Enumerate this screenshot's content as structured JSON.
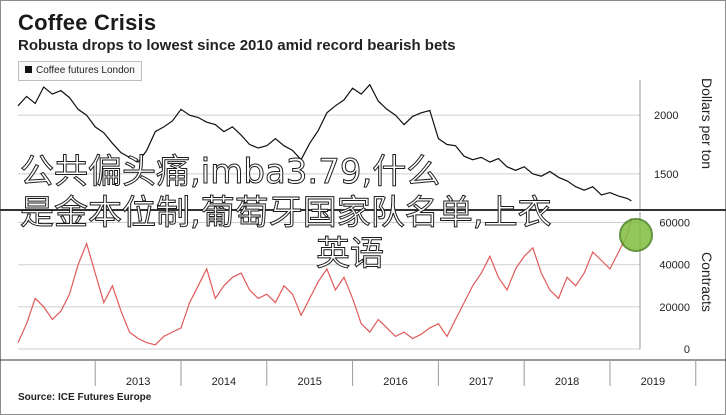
{
  "header": {
    "title": "Coffee Crisis",
    "subtitle": "Robusta drops to lowest since 2010 amid record bearish bets",
    "legend_label": "Coffee futures London"
  },
  "source": "Source: ICE Futures Europe",
  "overlay": {
    "line1": "公共偏头痛,imba3.79,什么",
    "line2": "是金本位制,葡萄牙国家队名单,上衣",
    "line3": "英语"
  },
  "colors": {
    "price_line": "#111111",
    "contracts_line": "#e05a5a",
    "logo": "#7fbf3f"
  },
  "chart_data": [
    {
      "type": "line",
      "title": "Robusta drops to lowest since 2010 amid record bearish bets",
      "ylabel": "Dollars per ton",
      "ylim": [
        1200,
        2300
      ],
      "yticks": [
        1500,
        2000
      ],
      "xticks": [
        "2013",
        "2014",
        "2015",
        "2016",
        "2017",
        "2018",
        "2019"
      ],
      "series": [
        {
          "name": "Coffee futures London",
          "x": [
            2012.1,
            2012.2,
            2012.3,
            2012.4,
            2012.5,
            2012.6,
            2012.7,
            2012.8,
            2012.9,
            2013.0,
            2013.1,
            2013.2,
            2013.3,
            2013.4,
            2013.5,
            2013.6,
            2013.7,
            2013.8,
            2013.9,
            2014.0,
            2014.1,
            2014.2,
            2014.3,
            2014.4,
            2014.5,
            2014.6,
            2014.7,
            2014.8,
            2014.9,
            2015.0,
            2015.1,
            2015.2,
            2015.3,
            2015.4,
            2015.5,
            2015.6,
            2015.7,
            2015.8,
            2015.9,
            2016.0,
            2016.1,
            2016.2,
            2016.3,
            2016.4,
            2016.5,
            2016.6,
            2016.7,
            2016.8,
            2016.9,
            2017.0,
            2017.1,
            2017.2,
            2017.3,
            2017.4,
            2017.5,
            2017.6,
            2017.7,
            2017.8,
            2017.9,
            2018.0,
            2018.1,
            2018.2,
            2018.3,
            2018.4,
            2018.5,
            2018.6,
            2018.7,
            2018.8,
            2018.9,
            2019.0,
            2019.1,
            2019.2,
            2019.25
          ],
          "values": [
            2080,
            2160,
            2100,
            2240,
            2180,
            2210,
            2150,
            2050,
            2000,
            1900,
            1850,
            1760,
            1680,
            1640,
            1600,
            1700,
            1860,
            1900,
            1950,
            2050,
            2000,
            1980,
            1940,
            1920,
            1860,
            1900,
            1830,
            1750,
            1720,
            1740,
            1800,
            1740,
            1700,
            1620,
            1760,
            1870,
            2020,
            2080,
            2130,
            2230,
            2180,
            2260,
            2120,
            2050,
            2000,
            1920,
            1990,
            2020,
            2040,
            1800,
            1750,
            1740,
            1650,
            1620,
            1640,
            1600,
            1630,
            1560,
            1530,
            1560,
            1500,
            1480,
            1520,
            1470,
            1440,
            1390,
            1360,
            1390,
            1320,
            1340,
            1310,
            1290,
            1270
          ]
        }
      ]
    },
    {
      "type": "line",
      "ylabel": "Contracts",
      "ylim": [
        0,
        65000
      ],
      "yticks": [
        0,
        20000,
        40000,
        60000
      ],
      "xticks": [
        "2013",
        "2014",
        "2015",
        "2016",
        "2017",
        "2018",
        "2019"
      ],
      "series": [
        {
          "x": [
            2012.1,
            2012.2,
            2012.3,
            2012.4,
            2012.5,
            2012.6,
            2012.7,
            2012.8,
            2012.9,
            2013.0,
            2013.1,
            2013.2,
            2013.3,
            2013.4,
            2013.5,
            2013.6,
            2013.7,
            2013.8,
            2013.9,
            2014.0,
            2014.1,
            2014.2,
            2014.3,
            2014.4,
            2014.5,
            2014.6,
            2014.7,
            2014.8,
            2014.9,
            2015.0,
            2015.1,
            2015.2,
            2015.3,
            2015.4,
            2015.5,
            2015.6,
            2015.7,
            2015.8,
            2015.9,
            2016.0,
            2016.1,
            2016.2,
            2016.3,
            2016.4,
            2016.5,
            2016.6,
            2016.7,
            2016.8,
            2016.9,
            2017.0,
            2017.1,
            2017.2,
            2017.3,
            2017.4,
            2017.5,
            2017.6,
            2017.7,
            2017.8,
            2017.9,
            2018.0,
            2018.1,
            2018.2,
            2018.3,
            2018.4,
            2018.5,
            2018.6,
            2018.7,
            2018.8,
            2018.9,
            2019.0,
            2019.1,
            2019.2,
            2019.25
          ],
          "values": [
            3000,
            12000,
            24000,
            20000,
            14000,
            18000,
            26000,
            40000,
            50000,
            36000,
            22000,
            30000,
            18000,
            8000,
            5000,
            3000,
            2000,
            6000,
            8000,
            10000,
            22000,
            30000,
            38000,
            24000,
            30000,
            34000,
            36000,
            28000,
            24000,
            26000,
            22000,
            30000,
            26000,
            16000,
            24000,
            32000,
            38000,
            28000,
            34000,
            24000,
            12000,
            8000,
            14000,
            10000,
            6000,
            8000,
            5000,
            7000,
            10000,
            12000,
            6000,
            14000,
            22000,
            30000,
            36000,
            44000,
            34000,
            28000,
            38000,
            44000,
            48000,
            36000,
            28000,
            24000,
            34000,
            30000,
            36000,
            46000,
            42000,
            38000,
            46000,
            54000,
            62000
          ]
        }
      ]
    }
  ]
}
